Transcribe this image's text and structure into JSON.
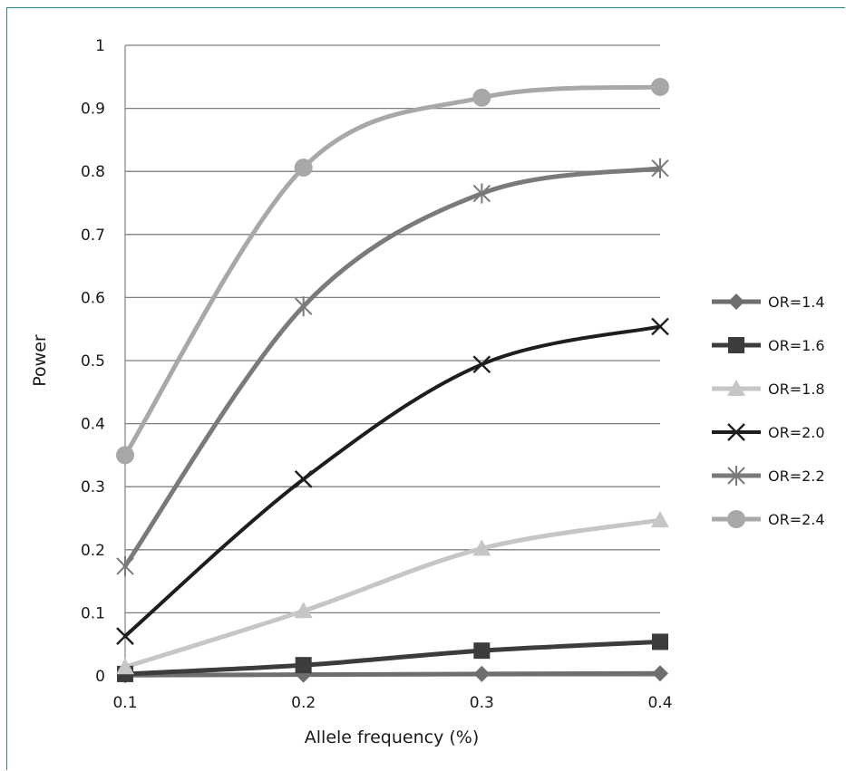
{
  "chart_data": {
    "type": "line",
    "xlabel": "Allele frequency (%)",
    "ylabel": "Power",
    "x": [
      0.1,
      0.2,
      0.3,
      0.4
    ],
    "x_ticks": [
      "0.1",
      "0.2",
      "0.3",
      "0.4"
    ],
    "ylim": [
      0,
      1
    ],
    "y_ticks": [
      "0",
      "0.1",
      "0.2",
      "0.3",
      "0.4",
      "0.5",
      "0.6",
      "0.7",
      "0.8",
      "0.9",
      "1"
    ],
    "grid": "horizontal",
    "legend_position": "right",
    "series": [
      {
        "name": "OR=1.4",
        "values": [
          0.001,
          0.002,
          0.003,
          0.004
        ],
        "color": "#6e6e6e",
        "marker": "diamond",
        "width": 5
      },
      {
        "name": "OR=1.6",
        "values": [
          0.003,
          0.017,
          0.04,
          0.054
        ],
        "color": "#3c3c3c",
        "marker": "square",
        "width": 5
      },
      {
        "name": "OR=1.8",
        "values": [
          0.014,
          0.103,
          0.202,
          0.247
        ],
        "color": "#c6c6c6",
        "marker": "triangle",
        "width": 5
      },
      {
        "name": "OR=2.0",
        "values": [
          0.063,
          0.312,
          0.494,
          0.554
        ],
        "color": "#1e1e1e",
        "marker": "x",
        "width": 4
      },
      {
        "name": "OR=2.2",
        "values": [
          0.174,
          0.586,
          0.765,
          0.805
        ],
        "color": "#7a7a7a",
        "marker": "star",
        "width": 5
      },
      {
        "name": "OR=2.4",
        "values": [
          0.35,
          0.806,
          0.917,
          0.934
        ],
        "color": "#a8a8a8",
        "marker": "circle",
        "width": 5
      }
    ]
  }
}
